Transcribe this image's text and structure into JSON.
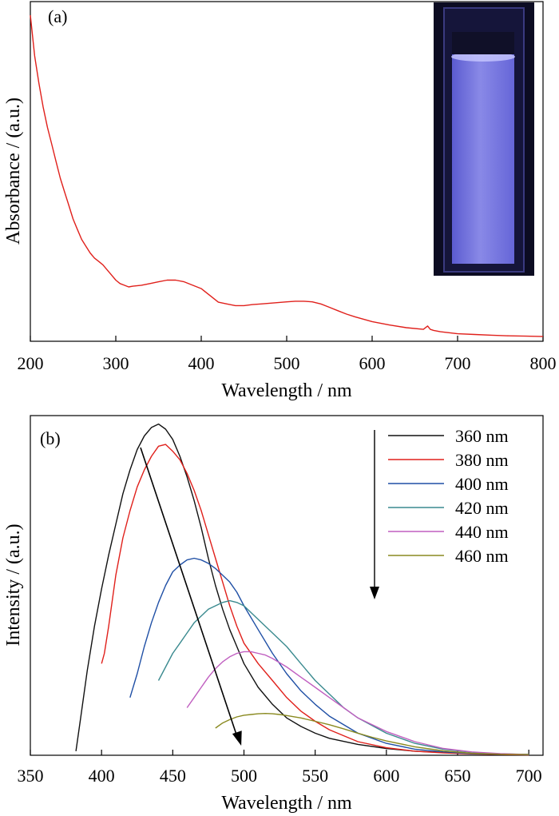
{
  "chart_data": [
    {
      "type": "line",
      "panel_label": "(a)",
      "title": "",
      "xlabel": "Wavelength / nm",
      "ylabel": "Absorbance / (a.u.)",
      "xlim": [
        200,
        800
      ],
      "ylim": [
        0,
        1
      ],
      "xticks": [
        200,
        300,
        400,
        500,
        600,
        700,
        800
      ],
      "tick_labels": [
        "200",
        "300",
        "400",
        "500",
        "600",
        "700",
        "800"
      ],
      "yticks_labels": "none",
      "grid": false,
      "inset": "photo-of-blue-fluorescent-cuvette",
      "series": [
        {
          "color": "#e0201b",
          "x": [
            200,
            205,
            210,
            215,
            220,
            225,
            230,
            235,
            240,
            245,
            250,
            255,
            260,
            265,
            270,
            275,
            280,
            285,
            290,
            295,
            300,
            305,
            310,
            315,
            320,
            330,
            340,
            350,
            360,
            370,
            380,
            390,
            400,
            410,
            420,
            430,
            440,
            450,
            460,
            470,
            480,
            490,
            500,
            510,
            520,
            530,
            540,
            550,
            560,
            570,
            580,
            590,
            600,
            620,
            640,
            660,
            665,
            668,
            672,
            680,
            700,
            720,
            740,
            760,
            780,
            800
          ],
          "y": [
            0.96,
            0.84,
            0.76,
            0.69,
            0.63,
            0.58,
            0.53,
            0.48,
            0.44,
            0.4,
            0.36,
            0.33,
            0.3,
            0.28,
            0.26,
            0.245,
            0.235,
            0.225,
            0.21,
            0.195,
            0.18,
            0.17,
            0.165,
            0.16,
            0.162,
            0.165,
            0.17,
            0.175,
            0.18,
            0.18,
            0.175,
            0.165,
            0.155,
            0.135,
            0.115,
            0.11,
            0.105,
            0.105,
            0.108,
            0.11,
            0.112,
            0.114,
            0.116,
            0.118,
            0.118,
            0.116,
            0.11,
            0.1,
            0.09,
            0.08,
            0.072,
            0.065,
            0.058,
            0.048,
            0.04,
            0.035,
            0.045,
            0.035,
            0.032,
            0.028,
            0.022,
            0.02,
            0.018,
            0.016,
            0.015,
            0.014
          ]
        }
      ]
    },
    {
      "type": "line",
      "panel_label": "(b)",
      "title": "",
      "xlabel": "Wavelength / nm",
      "ylabel": "Intensity / (a.u.)",
      "xlim": [
        350,
        710
      ],
      "ylim": [
        0,
        1
      ],
      "xticks": [
        350,
        400,
        450,
        500,
        550,
        600,
        650,
        700
      ],
      "tick_labels": [
        "350",
        "400",
        "450",
        "500",
        "550",
        "600",
        "650",
        "700"
      ],
      "yticks_labels": "none",
      "grid": false,
      "legend": "top-right",
      "annotation": "arrow-from-360-peak-to-460-peak",
      "series": [
        {
          "name": "360 nm",
          "color": "#111111",
          "x": [
            382,
            385,
            390,
            395,
            400,
            405,
            410,
            415,
            420,
            425,
            430,
            435,
            440,
            445,
            450,
            455,
            460,
            465,
            470,
            475,
            480,
            485,
            490,
            495,
            500,
            510,
            520,
            530,
            540,
            550,
            560,
            580,
            600,
            620,
            640,
            660,
            680,
            700
          ],
          "y": [
            0.012,
            0.1,
            0.25,
            0.38,
            0.49,
            0.59,
            0.68,
            0.77,
            0.84,
            0.9,
            0.94,
            0.965,
            0.975,
            0.96,
            0.93,
            0.88,
            0.82,
            0.75,
            0.67,
            0.58,
            0.5,
            0.43,
            0.37,
            0.32,
            0.27,
            0.2,
            0.15,
            0.11,
            0.085,
            0.065,
            0.05,
            0.032,
            0.02,
            0.012,
            0.008,
            0.005,
            0.003,
            0.002
          ]
        },
        {
          "name": "380 nm",
          "color": "#e0201b",
          "x": [
            400,
            402,
            405,
            410,
            415,
            420,
            425,
            430,
            435,
            440,
            445,
            450,
            455,
            460,
            465,
            470,
            475,
            480,
            485,
            490,
            495,
            500,
            510,
            520,
            530,
            540,
            550,
            560,
            580,
            600,
            620,
            640,
            660,
            680,
            700
          ],
          "y": [
            0.27,
            0.3,
            0.38,
            0.53,
            0.64,
            0.72,
            0.79,
            0.84,
            0.88,
            0.91,
            0.915,
            0.895,
            0.87,
            0.83,
            0.78,
            0.72,
            0.65,
            0.58,
            0.51,
            0.44,
            0.38,
            0.33,
            0.27,
            0.22,
            0.17,
            0.13,
            0.1,
            0.075,
            0.04,
            0.022,
            0.012,
            0.007,
            0.004,
            0.002,
            0.001
          ]
        },
        {
          "name": "400 nm",
          "color": "#1f4fa5",
          "x": [
            420,
            425,
            430,
            435,
            440,
            445,
            450,
            455,
            460,
            465,
            470,
            475,
            480,
            485,
            490,
            495,
            500,
            510,
            520,
            530,
            540,
            550,
            560,
            580,
            600,
            620,
            640,
            660,
            680,
            700
          ],
          "y": [
            0.17,
            0.24,
            0.32,
            0.39,
            0.45,
            0.5,
            0.54,
            0.56,
            0.575,
            0.58,
            0.575,
            0.565,
            0.55,
            0.53,
            0.51,
            0.48,
            0.44,
            0.37,
            0.3,
            0.24,
            0.19,
            0.15,
            0.115,
            0.065,
            0.035,
            0.018,
            0.01,
            0.005,
            0.003,
            0.002
          ]
        },
        {
          "name": "420 nm",
          "color": "#3a8a8f",
          "x": [
            440,
            445,
            450,
            455,
            460,
            465,
            470,
            475,
            480,
            485,
            490,
            495,
            500,
            505,
            510,
            520,
            530,
            540,
            550,
            560,
            570,
            580,
            600,
            620,
            640,
            660,
            680,
            700
          ],
          "y": [
            0.22,
            0.26,
            0.3,
            0.33,
            0.36,
            0.39,
            0.41,
            0.43,
            0.44,
            0.45,
            0.455,
            0.45,
            0.44,
            0.42,
            0.4,
            0.36,
            0.32,
            0.27,
            0.22,
            0.18,
            0.14,
            0.11,
            0.065,
            0.035,
            0.018,
            0.009,
            0.004,
            0.002
          ]
        },
        {
          "name": "440 nm",
          "color": "#c05fc0",
          "x": [
            460,
            465,
            470,
            475,
            480,
            485,
            490,
            495,
            500,
            505,
            510,
            515,
            520,
            530,
            540,
            550,
            560,
            570,
            580,
            600,
            620,
            640,
            660,
            680,
            700
          ],
          "y": [
            0.14,
            0.17,
            0.2,
            0.23,
            0.255,
            0.275,
            0.29,
            0.3,
            0.305,
            0.305,
            0.3,
            0.295,
            0.285,
            0.26,
            0.23,
            0.2,
            0.17,
            0.14,
            0.11,
            0.07,
            0.04,
            0.02,
            0.01,
            0.005,
            0.002
          ]
        },
        {
          "name": "460 nm",
          "color": "#8a8a20",
          "x": [
            480,
            485,
            490,
            495,
            500,
            505,
            510,
            515,
            520,
            525,
            530,
            540,
            550,
            560,
            570,
            580,
            590,
            600,
            620,
            640,
            660,
            680,
            700
          ],
          "y": [
            0.08,
            0.095,
            0.105,
            0.113,
            0.118,
            0.12,
            0.122,
            0.123,
            0.122,
            0.12,
            0.117,
            0.11,
            0.1,
            0.09,
            0.078,
            0.065,
            0.053,
            0.042,
            0.025,
            0.013,
            0.006,
            0.003,
            0.002
          ]
        }
      ]
    }
  ]
}
